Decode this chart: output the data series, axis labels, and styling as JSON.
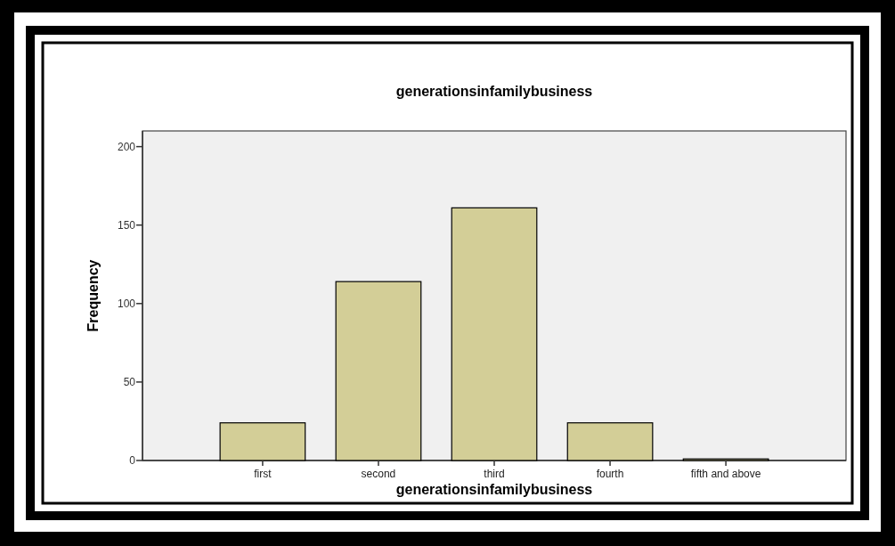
{
  "chart_data": {
    "type": "bar",
    "title": "generationsinfamilybusiness",
    "xlabel": "generationsinfamilybusiness",
    "ylabel": "Frequency",
    "categories": [
      "first",
      "second",
      "third",
      "fourth",
      "fifth and above"
    ],
    "values": [
      24,
      114,
      161,
      24,
      1
    ],
    "color": "#d3ce97",
    "ylim": [
      0,
      210
    ],
    "yticks": [
      0,
      50,
      100,
      150,
      200
    ],
    "grid": false
  }
}
